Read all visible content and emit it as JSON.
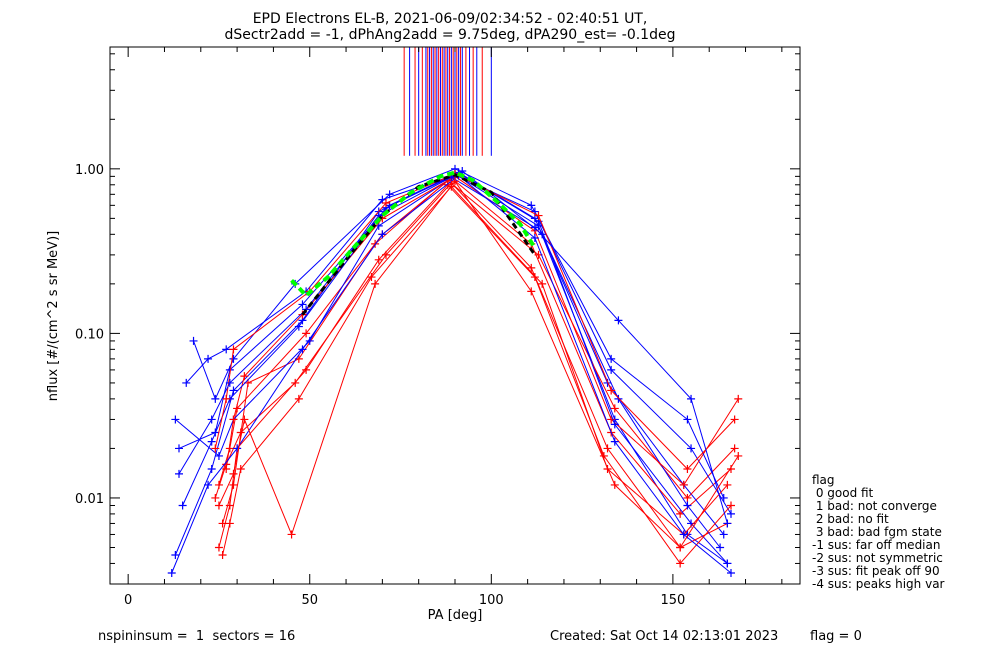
{
  "title_line1": "EPD Electrons EL-B, 2021-06-09/02:34:52 - 02:40:51 UT,",
  "title_line2": "dSectr2add = -1, dPhAng2add = 9.75deg, dPA290_est=  -0.1deg",
  "footer_left": "nspininsum =  1  sectors = 16",
  "footer_created": "Created: Sat Oct 14 02:13:01 2023",
  "footer_flag": "flag = 0",
  "legend": {
    "title": "flag",
    "items": [
      " 0 good fit",
      " 1 bad: not converge",
      " 2 bad: no fit",
      " 3 bad: bad fgm state",
      "-1 sus: far off median",
      "-2 sus: not symmetric",
      "-3 sus: fit peak off 90",
      "-4 sus: peaks high var"
    ]
  },
  "chart_data": {
    "type": "line",
    "xlabel": "PA [deg]",
    "ylabel": "nflux [#/(cm^2 s sr MeV)]",
    "xlim": [
      -5,
      185
    ],
    "ylim": [
      0.003,
      5.5
    ],
    "ylog": true,
    "xticks": [
      0,
      50,
      100,
      150
    ],
    "xtick_labels": [
      "0",
      "50",
      "100",
      "150"
    ],
    "yticks": [
      0.01,
      0.1,
      1.0
    ],
    "ytick_labels": [
      "0.01",
      "0.10",
      "1.00"
    ],
    "colors": {
      "blue": "#0000ff",
      "red": "#ff0000",
      "green": "#00ff00",
      "black": "#000000"
    },
    "sectors_pa": [
      12,
      23,
      27,
      48,
      70,
      90,
      112,
      133,
      153,
      165
    ],
    "series": [
      {
        "color": "blue",
        "pa": [
          13,
          23,
          29,
          48,
          69,
          90,
          113,
          134,
          154,
          165
        ],
        "flux": [
          0.0045,
          0.015,
          0.045,
          0.12,
          0.55,
          0.93,
          0.45,
          0.03,
          0.006,
          0.004
        ]
      },
      {
        "color": "red",
        "pa": [
          25,
          28,
          30,
          49,
          70,
          89,
          111,
          133,
          152,
          166
        ],
        "flux": [
          0.012,
          0.02,
          0.035,
          0.1,
          0.4,
          0.88,
          0.35,
          0.025,
          0.008,
          0.015
        ]
      },
      {
        "color": "blue",
        "pa": [
          14,
          24,
          28,
          48,
          72,
          91,
          112,
          132,
          153,
          164
        ],
        "flux": [
          0.02,
          0.025,
          0.06,
          0.15,
          0.6,
          0.95,
          0.5,
          0.05,
          0.012,
          0.006
        ]
      },
      {
        "color": "red",
        "pa": [
          26,
          29,
          33,
          47,
          68,
          88,
          113,
          134,
          154,
          167
        ],
        "flux": [
          0.007,
          0.012,
          0.05,
          0.07,
          0.35,
          0.85,
          0.3,
          0.035,
          0.01,
          0.02
        ]
      },
      {
        "color": "blue",
        "pa": [
          16,
          22,
          27,
          49,
          70,
          90,
          112,
          133,
          155,
          166
        ],
        "flux": [
          0.05,
          0.07,
          0.08,
          0.18,
          0.65,
          0.92,
          0.55,
          0.06,
          0.02,
          0.008
        ]
      },
      {
        "color": "red",
        "pa": [
          24,
          27,
          31,
          46,
          71,
          89,
          111,
          132,
          152,
          165
        ],
        "flux": [
          0.01,
          0.016,
          0.025,
          0.05,
          0.3,
          0.82,
          0.25,
          0.02,
          0.005,
          0.007
        ]
      },
      {
        "color": "blue",
        "pa": [
          13,
          25,
          29,
          50,
          69,
          92,
          114,
          135,
          154,
          163
        ],
        "flux": [
          0.03,
          0.018,
          0.03,
          0.09,
          0.45,
          0.97,
          0.4,
          0.04,
          0.009,
          0.005
        ]
      },
      {
        "color": "red",
        "pa": [
          27,
          29,
          32,
          48,
          70,
          90,
          112,
          133,
          153,
          168
        ],
        "flux": [
          0.015,
          0.03,
          0.055,
          0.13,
          0.5,
          0.9,
          0.42,
          0.03,
          0.012,
          0.04
        ]
      },
      {
        "color": "blue",
        "pa": [
          15,
          23,
          28,
          47,
          71,
          91,
          113,
          134,
          155,
          165
        ],
        "flux": [
          0.009,
          0.022,
          0.04,
          0.11,
          0.58,
          0.94,
          0.48,
          0.028,
          0.007,
          0.004
        ]
      },
      {
        "color": "red",
        "pa": [
          25,
          28,
          30,
          49,
          69,
          88,
          112,
          131,
          152,
          166
        ],
        "flux": [
          0.005,
          0.009,
          0.02,
          0.06,
          0.28,
          0.8,
          0.22,
          0.018,
          0.004,
          0.009
        ]
      },
      {
        "color": "blue",
        "pa": [
          18,
          24,
          29,
          46,
          72,
          90,
          111,
          133,
          154,
          164
        ],
        "flux": [
          0.09,
          0.04,
          0.07,
          0.2,
          0.7,
          1.0,
          0.6,
          0.07,
          0.03,
          0.01
        ]
      },
      {
        "color": "red",
        "pa": [
          26,
          28,
          31,
          47,
          67,
          89,
          114,
          132,
          153,
          165
        ],
        "flux": [
          0.0045,
          0.007,
          0.015,
          0.04,
          0.22,
          0.78,
          0.2,
          0.015,
          0.006,
          0.012
        ]
      },
      {
        "color": "blue",
        "pa": [
          12,
          22,
          30,
          48,
          70,
          91,
          112,
          134,
          153,
          166
        ],
        "flux": [
          0.0035,
          0.012,
          0.02,
          0.08,
          0.4,
          0.91,
          0.38,
          0.022,
          0.006,
          0.0035
        ]
      },
      {
        "color": "red",
        "pa": [
          24,
          27,
          29,
          50,
          71,
          90,
          113,
          133,
          154,
          167
        ],
        "flux": [
          0.02,
          0.04,
          0.08,
          0.18,
          0.62,
          0.93,
          0.52,
          0.045,
          0.015,
          0.03
        ]
      },
      {
        "color": "blue",
        "pa": [
          14,
          23,
          28,
          49,
          69,
          89,
          112,
          135,
          155,
          165
        ],
        "flux": [
          0.014,
          0.03,
          0.05,
          0.14,
          0.52,
          0.89,
          0.44,
          0.12,
          0.04,
          0.007
        ]
      },
      {
        "color": "red",
        "pa": [
          25,
          29,
          32,
          45,
          68,
          90,
          111,
          134,
          152,
          168
        ],
        "flux": [
          0.009,
          0.014,
          0.03,
          0.006,
          0.2,
          0.84,
          0.18,
          0.012,
          0.005,
          0.018
        ]
      }
    ],
    "average": {
      "color": "black",
      "pa": [
        48,
        60,
        70,
        80,
        90,
        100,
        112
      ],
      "flux": [
        0.13,
        0.28,
        0.52,
        0.78,
        0.92,
        0.72,
        0.3
      ]
    },
    "fit": {
      "color": "green",
      "pa": [
        45,
        49,
        55,
        62,
        70,
        78,
        86,
        90,
        95,
        102,
        108,
        112
      ],
      "flux": [
        0.21,
        0.17,
        0.22,
        0.33,
        0.52,
        0.72,
        0.9,
        0.95,
        0.85,
        0.62,
        0.46,
        0.33
      ]
    },
    "spikes_pa": [
      76,
      77.5,
      79,
      80,
      81,
      82,
      82.5,
      83,
      83.5,
      84,
      84.5,
      85,
      85.5,
      86,
      86.5,
      87,
      87.5,
      88,
      88.5,
      89,
      89.5,
      90,
      90.5,
      91,
      91.5,
      92,
      93,
      94,
      95,
      96,
      97.5,
      100
    ],
    "spikes_color": [
      "red",
      "blue"
    ]
  }
}
